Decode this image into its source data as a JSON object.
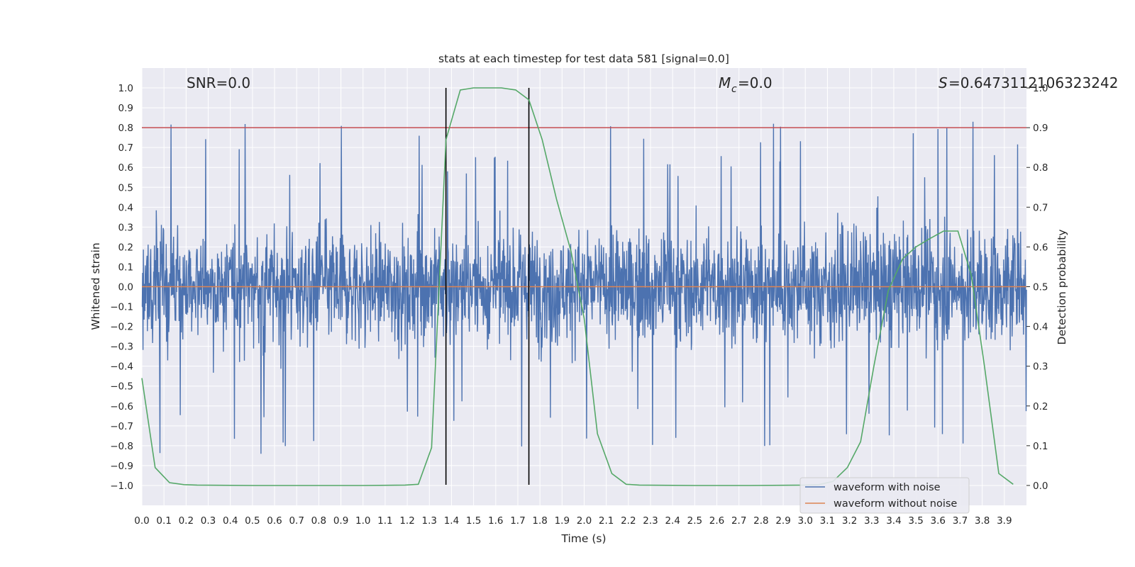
{
  "chart_data": {
    "type": "line",
    "title": "stats at each timestep for test data 581 [signal=0.0]",
    "xlabel": "Time (s)",
    "ylabel": "Whitened strain",
    "ylabel_right": "Detection probability",
    "xlim": [
      0.0,
      4.0
    ],
    "ylim": [
      -1.1,
      1.1
    ],
    "ylim_right": [
      -0.05,
      1.05
    ],
    "x_ticks": [
      "0.0",
      "0.1",
      "0.2",
      "0.3",
      "0.4",
      "0.5",
      "0.6",
      "0.7",
      "0.8",
      "0.9",
      "1.0",
      "1.1",
      "1.2",
      "1.3",
      "1.4",
      "1.5",
      "1.6",
      "1.7",
      "1.8",
      "1.9",
      "2.0",
      "2.1",
      "2.2",
      "2.3",
      "2.4",
      "2.5",
      "2.6",
      "2.7",
      "2.8",
      "2.9",
      "3.0",
      "3.1",
      "3.2",
      "3.3",
      "3.4",
      "3.5",
      "3.6",
      "3.7",
      "3.8",
      "3.9"
    ],
    "y_ticks": [
      "1.0",
      "0.9",
      "0.8",
      "0.7",
      "0.6",
      "0.5",
      "0.4",
      "0.3",
      "0.2",
      "0.1",
      "0.0",
      "−0.1",
      "−0.2",
      "−0.3",
      "−0.4",
      "−0.5",
      "−0.6",
      "−0.7",
      "−0.8",
      "−0.9",
      "−1.0"
    ],
    "y_ticks_right": [
      "1.0",
      "0.9",
      "0.8",
      "0.7",
      "0.6",
      "0.5",
      "0.4",
      "0.3",
      "0.2",
      "0.1",
      "0.0"
    ],
    "annotations": {
      "snr_text": "SNR=0.0",
      "mc_symbol": "M",
      "mc_sub": "c",
      "mc_value": "=0.0",
      "s_symbol": "S",
      "s_value": "=0.6473112106323242"
    },
    "vertical_lines_x": [
      1.375,
      1.75
    ],
    "threshold_right": 0.9,
    "series": [
      {
        "name": "waveform with noise",
        "color": "#4c72b0",
        "envelope": "noise in roughly ±0.4 with spikes to about 0.85 and −1.0"
      },
      {
        "name": "waveform without noise",
        "color": "#dd8452",
        "value": 0.0
      },
      {
        "color": "#55a868",
        "axis": "right",
        "x": [
          0.0,
          0.06,
          0.125,
          0.19,
          0.25,
          0.5,
          0.75,
          1.0,
          1.19,
          1.25,
          1.31,
          1.375,
          1.44,
          1.5,
          1.56,
          1.625,
          1.69,
          1.75,
          1.81,
          1.875,
          1.94,
          2.0,
          2.06,
          2.125,
          2.19,
          2.25,
          2.5,
          2.75,
          3.0,
          3.06,
          3.125,
          3.19,
          3.25,
          3.31,
          3.375,
          3.44,
          3.5,
          3.56,
          3.625,
          3.69,
          3.75,
          3.81,
          3.875,
          3.94
        ],
        "values": [
          0.27,
          0.045,
          0.007,
          0.002,
          0.001,
          0.0,
          0.0,
          0.0,
          0.001,
          0.003,
          0.095,
          0.87,
          0.995,
          1.0,
          1.0,
          1.0,
          0.995,
          0.97,
          0.87,
          0.72,
          0.59,
          0.42,
          0.13,
          0.03,
          0.003,
          0.001,
          0.0,
          0.0,
          0.001,
          0.002,
          0.01,
          0.045,
          0.11,
          0.3,
          0.49,
          0.57,
          0.6,
          0.62,
          0.64,
          0.64,
          0.53,
          0.3,
          0.03,
          0.003
        ]
      }
    ],
    "colors": {
      "noise": "#4c72b0",
      "clean": "#dd8452",
      "probability": "#55a868",
      "threshold": "#c44e52",
      "vline": "#000000",
      "plot_bg": "#eaeaf2",
      "grid": "#ffffff"
    },
    "legend_placement": "lower-right"
  }
}
